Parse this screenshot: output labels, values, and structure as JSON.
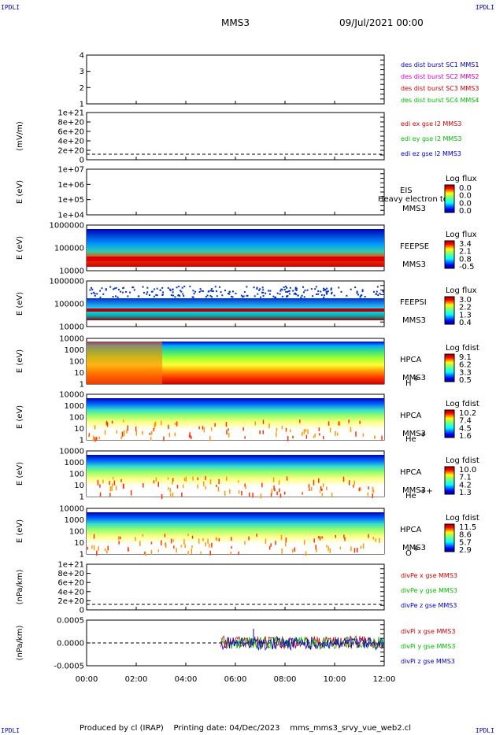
{
  "corner_tags": {
    "tl": "IPDLI",
    "tr": "IPDLI",
    "bl": "IPDLI",
    "br": "IPDLI"
  },
  "header": {
    "mission": "MMS3",
    "date": "09/Jul/2021 00:00"
  },
  "footer": {
    "produced_by": "Produced by cl (IRAP)",
    "printing_date": "Printing date: 04/Dec/2023",
    "script": "mms_mms3_srvy_vue_web2.cl"
  },
  "colors": {
    "blue": "#0000cc",
    "magenta": "#cc00cc",
    "red": "#cc0000",
    "green": "#00bb00"
  },
  "chart_data": [
    {
      "type": "line",
      "panel": "sc-position",
      "ylabel": "",
      "yticks": [
        "4",
        "3",
        "2",
        "1"
      ],
      "ylim": [
        1,
        4
      ],
      "legend": [
        {
          "text": "des dist burst SC1 MMS1",
          "color": "#0000cc"
        },
        {
          "text": "des dist burst SC2 MMS2",
          "color": "#cc00cc"
        },
        {
          "text": "des dist burst SC3 MMS3",
          "color": "#cc0000"
        },
        {
          "text": "des dist burst SC4 MMS4",
          "color": "#00bb00"
        }
      ]
    },
    {
      "type": "line",
      "panel": "edi-e-field",
      "ylabel": "(mV/m)",
      "yticks": [
        "1e+21",
        "8e+20",
        "6e+20",
        "4e+20",
        "2e+20",
        "0"
      ],
      "ylim": [
        0,
        1e+21
      ],
      "legend": [
        {
          "text": "edi ex gse l2 MMS3",
          "color": "#cc0000"
        },
        {
          "text": "edi ey gse l2 MMS3",
          "color": "#00bb00"
        },
        {
          "text": "edi ez gse l2 MMS3",
          "color": "#0000cc"
        }
      ]
    },
    {
      "type": "heatmap",
      "panel": "eis",
      "ylabel": "E (eV)",
      "yticks": [
        "1e+07",
        "1e+06",
        "1e+05",
        "1e+04"
      ],
      "ylim": [
        10000.0,
        10000000.0
      ],
      "labels": [
        "EIS",
        "MMS3"
      ],
      "overlay_text": "Heavy electron to",
      "colorbar": {
        "title": "Log flux",
        "ticks": [
          "0.0",
          "0.0",
          "0.0",
          "0.0"
        ]
      }
    },
    {
      "type": "heatmap",
      "panel": "feeps-e",
      "ylabel": "E (eV)",
      "yticks": [
        "1000000",
        "100000",
        "10000"
      ],
      "ylim": [
        10000.0,
        1000000.0
      ],
      "labels": [
        "FEEPSE",
        "MMS3"
      ],
      "colorbar": {
        "title": "Log flux",
        "ticks": [
          "3.4",
          "2.1",
          "0.8",
          "-0.5"
        ]
      }
    },
    {
      "type": "heatmap",
      "panel": "feeps-i",
      "ylabel": "E (eV)",
      "yticks": [
        "1000000",
        "100000",
        "10000"
      ],
      "ylim": [
        10000.0,
        1000000.0
      ],
      "labels": [
        "FEEPSI",
        "MMS3"
      ],
      "colorbar": {
        "title": "Log flux",
        "ticks": [
          "3.0",
          "2.2",
          "1.3",
          "0.4"
        ]
      }
    },
    {
      "type": "heatmap",
      "panel": "hpca-h",
      "ylabel": "E (eV)",
      "yticks": [
        "10000",
        "1000",
        "100",
        "10",
        "1"
      ],
      "ylim": [
        1,
        10000.0
      ],
      "labels": [
        "HPCA",
        "MMS3"
      ],
      "species": "H",
      "species_sup": "+",
      "colorbar": {
        "title": "Log fdist",
        "ticks": [
          "9.1",
          "6.2",
          "3.3",
          "0.5"
        ]
      }
    },
    {
      "type": "heatmap",
      "panel": "hpca-he1",
      "ylabel": "E (eV)",
      "yticks": [
        "10000",
        "1000",
        "100",
        "10",
        "1"
      ],
      "ylim": [
        1,
        10000.0
      ],
      "labels": [
        "HPCA",
        "MMS3"
      ],
      "species": "He",
      "species_sup": "+",
      "colorbar": {
        "title": "Log fdist",
        "ticks": [
          "10.2",
          "7.4",
          "4.5",
          "1.6"
        ]
      }
    },
    {
      "type": "heatmap",
      "panel": "hpca-he2",
      "ylabel": "E (eV)",
      "yticks": [
        "10000",
        "1000",
        "100",
        "10",
        "1"
      ],
      "ylim": [
        1,
        10000.0
      ],
      "labels": [
        "HPCA",
        "MMS3"
      ],
      "species": "He",
      "species_sup": "++",
      "colorbar": {
        "title": "Log fdist",
        "ticks": [
          "10.0",
          "7.1",
          "4.2",
          "1.3"
        ]
      }
    },
    {
      "type": "heatmap",
      "panel": "hpca-o",
      "ylabel": "E (eV)",
      "yticks": [
        "10000",
        "1000",
        "100",
        "10",
        "1"
      ],
      "ylim": [
        1,
        10000.0
      ],
      "labels": [
        "HPCA",
        "MMS3"
      ],
      "species": "O",
      "species_sup": "+",
      "colorbar": {
        "title": "Log fdist",
        "ticks": [
          "11.5",
          "8.6",
          "5.7",
          "2.9"
        ]
      }
    },
    {
      "type": "line",
      "panel": "divpe",
      "ylabel": "(nPa/km)",
      "yticks": [
        "1e+21",
        "8e+20",
        "6e+20",
        "4e+20",
        "2e+20",
        "0"
      ],
      "ylim": [
        0,
        1e+21
      ],
      "legend": [
        {
          "text": "divPe x gse MMS3",
          "color": "#cc0000"
        },
        {
          "text": "divPe y gse MMS3",
          "color": "#00bb00"
        },
        {
          "text": "divPe z gse MMS3",
          "color": "#0000cc"
        }
      ]
    },
    {
      "type": "line",
      "panel": "divpi",
      "ylabel": "(nPa/km)",
      "yticks": [
        "0.0005",
        "0.0000",
        "-0.0005"
      ],
      "ylim": [
        -0.00075,
        0.00075
      ],
      "data_start": "05:25",
      "legend": [
        {
          "text": "divPi x gse MMS3",
          "color": "#cc0000"
        },
        {
          "text": "divPi y gse MMS3",
          "color": "#00bb00"
        },
        {
          "text": "divPi z gse MMS3",
          "color": "#0000cc"
        }
      ]
    }
  ],
  "x_axis": {
    "ticks": [
      "00:00",
      "02:00",
      "04:00",
      "06:00",
      "08:00",
      "10:00",
      "12:00"
    ]
  }
}
